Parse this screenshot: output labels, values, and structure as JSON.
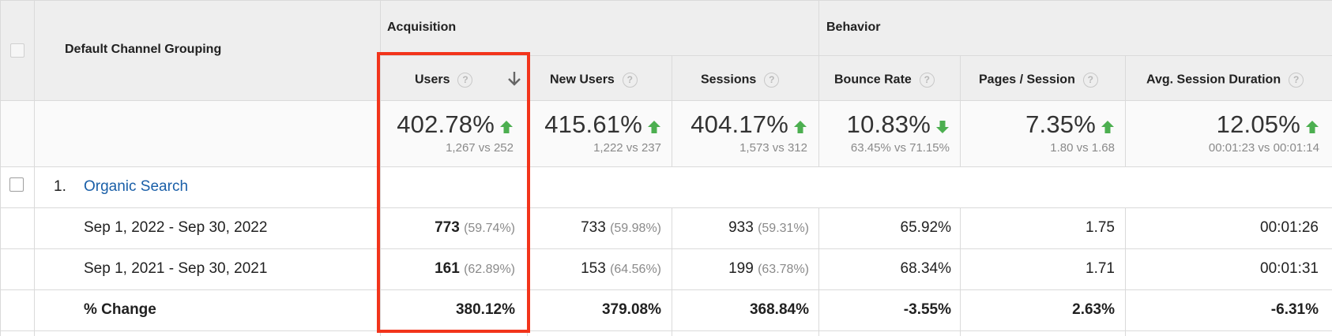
{
  "header": {
    "dimension_label": "Default Channel Grouping",
    "group_acquisition": "Acquisition",
    "group_behavior": "Behavior",
    "columns": [
      {
        "label": "Users",
        "help": "?"
      },
      {
        "label": "New Users",
        "help": "?"
      },
      {
        "label": "Sessions",
        "help": "?"
      },
      {
        "label": "Bounce Rate",
        "help": "?"
      },
      {
        "label": "Pages / Session",
        "help": "?"
      },
      {
        "label": "Avg. Session Duration",
        "help": "?"
      }
    ],
    "sort_icon": "arrow-down-icon"
  },
  "summary": [
    {
      "value": "402.78%",
      "compare": "1,267 vs 252",
      "trend": "up"
    },
    {
      "value": "415.61%",
      "compare": "1,222 vs 237",
      "trend": "up"
    },
    {
      "value": "404.17%",
      "compare": "1,573 vs 312",
      "trend": "up"
    },
    {
      "value": "10.83%",
      "compare": "63.45% vs 71.15%",
      "trend": "down"
    },
    {
      "value": "7.35%",
      "compare": "1.80 vs 1.68",
      "trend": "up"
    },
    {
      "value": "12.05%",
      "compare": "00:01:23 vs 00:01:14",
      "trend": "up"
    }
  ],
  "rows": {
    "channel_index": "1.",
    "channel_name": "Organic Search",
    "period1": {
      "label": "Sep 1, 2022 - Sep 30, 2022",
      "users": "773",
      "users_pct": "(59.74%)",
      "new_users": "733",
      "new_users_pct": "(59.98%)",
      "sessions": "933",
      "sessions_pct": "(59.31%)",
      "bounce_rate": "65.92%",
      "pages_session": "1.75",
      "avg_duration": "00:01:26"
    },
    "period2": {
      "label": "Sep 1, 2021 - Sep 30, 2021",
      "users": "161",
      "users_pct": "(62.89%)",
      "new_users": "153",
      "new_users_pct": "(64.56%)",
      "sessions": "199",
      "sessions_pct": "(63.78%)",
      "bounce_rate": "68.34%",
      "pages_session": "1.71",
      "avg_duration": "00:01:31"
    },
    "change": {
      "label": "% Change",
      "users": "380.12%",
      "new_users": "379.08%",
      "sessions": "368.84%",
      "bounce_rate": "-3.55%",
      "pages_session": "2.63%",
      "avg_duration": "-6.31%"
    }
  },
  "colors": {
    "up_arrow": "#4caf50",
    "down_arrow": "#4caf50",
    "highlight": "#f2341b",
    "link": "#1a5fa8"
  }
}
